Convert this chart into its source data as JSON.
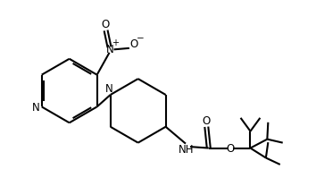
{
  "line_color": "#000000",
  "bg_color": "#ffffff",
  "linewidth": 1.5,
  "figsize": [
    3.54,
    2.08
  ],
  "dpi": 100,
  "xlim": [
    0.0,
    7.1
  ],
  "ylim": [
    0.5,
    4.5
  ]
}
